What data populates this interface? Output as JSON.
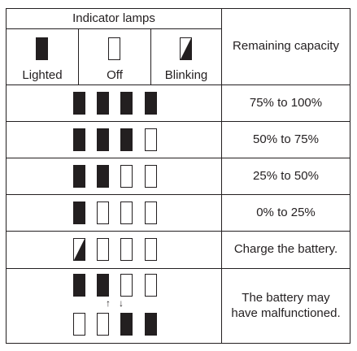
{
  "header": {
    "indicator_lamps": "Indicator lamps",
    "remaining_capacity": "Remaining capacity",
    "legend": [
      {
        "label": "Lighted",
        "state": "on"
      },
      {
        "label": "Off",
        "state": "off"
      },
      {
        "label": "Blinking",
        "state": "blink"
      }
    ]
  },
  "rows": [
    {
      "lamps": [
        "on",
        "on",
        "on",
        "on"
      ],
      "description": "75% to 100%"
    },
    {
      "lamps": [
        "on",
        "on",
        "on",
        "off"
      ],
      "description": "50% to 75%"
    },
    {
      "lamps": [
        "on",
        "on",
        "off",
        "off"
      ],
      "description": "25% to 50%"
    },
    {
      "lamps": [
        "on",
        "off",
        "off",
        "off"
      ],
      "description": "0% to 25%"
    },
    {
      "lamps": [
        "blink",
        "off",
        "off",
        "off"
      ],
      "description": "Charge the battery."
    },
    {
      "lamps_top": [
        "on",
        "on",
        "off",
        "off"
      ],
      "lamps_bottom": [
        "off",
        "off",
        "on",
        "on"
      ],
      "arrows": [
        "↑",
        "↓"
      ],
      "description_lines": [
        "The battery may",
        "have malfunctioned."
      ]
    }
  ],
  "colors": {
    "ink": "#231f20",
    "background": "#ffffff"
  }
}
